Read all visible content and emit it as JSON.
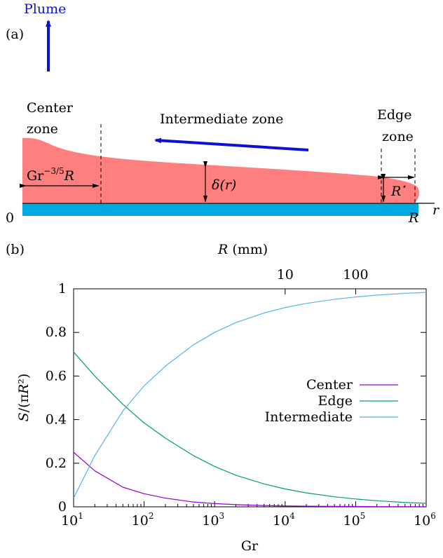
{
  "panel_a": {
    "label": "(a)",
    "plume_label": "Plume",
    "center_zone": [
      "Center",
      "zone"
    ],
    "intermediate_zone": "Intermediate zone",
    "edge_zone": [
      "Edge",
      "zone"
    ],
    "gr_base": "Gr",
    "gr_exponent": "−3/5",
    "gr_suffix": "R",
    "delta_label": "δ(r)",
    "rstar_base": "R",
    "rstar_sup": "⋆",
    "origin_label": "0",
    "r_end_label": "R",
    "r_axis_label": "r",
    "colors": {
      "film": "#ff7f7f",
      "substrate": "#00a9e0",
      "arrow": "#1010d0"
    }
  },
  "panel_b": {
    "label": "(b)"
  },
  "chart_data": {
    "type": "line",
    "xlabel": "Gr",
    "ylabel": "S/(πR²)",
    "x2label": "R (mm)",
    "xscale": "log",
    "xlim": [
      10,
      1000000
    ],
    "ylim": [
      0,
      1
    ],
    "x_ticks": [
      10,
      100,
      1000,
      10000,
      100000,
      1000000
    ],
    "x_tick_labels": [
      {
        "base": "10",
        "exp": "1"
      },
      {
        "base": "10",
        "exp": "2"
      },
      {
        "base": "10",
        "exp": "3"
      },
      {
        "base": "10",
        "exp": "4"
      },
      {
        "base": "10",
        "exp": "5"
      },
      {
        "base": "10",
        "exp": "6"
      }
    ],
    "y_ticks": [
      0,
      0.2,
      0.4,
      0.6,
      0.8,
      1
    ],
    "y_tick_labels": [
      "0",
      "0.2",
      "0.4",
      "0.6",
      "0.8",
      "1"
    ],
    "x2_ticks": [
      {
        "label": "10",
        "gr": 10000
      },
      {
        "label": "100",
        "gr": 100000
      }
    ],
    "legend_position": "center-right",
    "x": [
      10,
      20,
      50,
      100,
      200,
      500,
      1000,
      2000,
      5000,
      10000,
      20000,
      50000,
      100000,
      200000,
      500000,
      1000000
    ],
    "series": [
      {
        "name": "Center",
        "color": "#9400d3",
        "values": [
          0.25,
          0.165,
          0.09,
          0.06,
          0.04,
          0.022,
          0.015,
          0.01,
          0.006,
          0.004,
          0.003,
          0.002,
          0.0015,
          0.001,
          0.0007,
          0.0005
        ]
      },
      {
        "name": "Edge",
        "color": "#009e73",
        "values": [
          0.71,
          0.6,
          0.47,
          0.385,
          0.315,
          0.235,
          0.185,
          0.145,
          0.105,
          0.082,
          0.064,
          0.046,
          0.036,
          0.028,
          0.02,
          0.016
        ]
      },
      {
        "name": "Intermediate",
        "color": "#56b4e9",
        "values": [
          0.04,
          0.235,
          0.44,
          0.555,
          0.645,
          0.743,
          0.8,
          0.845,
          0.889,
          0.914,
          0.933,
          0.952,
          0.9625,
          0.971,
          0.9793,
          0.9835
        ]
      }
    ]
  }
}
